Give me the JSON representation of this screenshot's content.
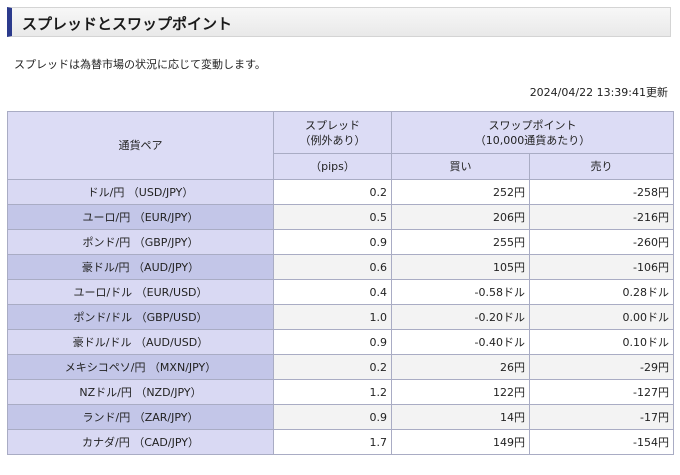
{
  "page": {
    "title": "スプレッドとスワップポイント",
    "note": "スプレッドは為替市場の状況に応じて変動します。",
    "updated": "2024/04/22 13:39:41更新"
  },
  "table": {
    "headers": {
      "pair": "通貨ペア",
      "spread_line1": "スプレッド",
      "spread_line2": "（例外あり）",
      "swap_line1": "スワップポイント",
      "swap_line2": "（10,000通貨あたり）",
      "pips": "（pips）",
      "buy": "買い",
      "sell": "売り"
    },
    "rows": [
      {
        "pair": "ドル/円 （USD/JPY）",
        "spread": "0.2",
        "buy": "252円",
        "sell": "-258円"
      },
      {
        "pair": "ユーロ/円 （EUR/JPY）",
        "spread": "0.5",
        "buy": "206円",
        "sell": "-216円"
      },
      {
        "pair": "ポンド/円 （GBP/JPY）",
        "spread": "0.9",
        "buy": "255円",
        "sell": "-260円"
      },
      {
        "pair": "豪ドル/円 （AUD/JPY）",
        "spread": "0.6",
        "buy": "105円",
        "sell": "-106円"
      },
      {
        "pair": "ユーロ/ドル （EUR/USD）",
        "spread": "0.4",
        "buy": "-0.58ドル",
        "sell": "0.28ドル"
      },
      {
        "pair": "ポンド/ドル （GBP/USD）",
        "spread": "1.0",
        "buy": "-0.20ドル",
        "sell": "0.00ドル"
      },
      {
        "pair": "豪ドル/ドル （AUD/USD）",
        "spread": "0.9",
        "buy": "-0.40ドル",
        "sell": "0.10ドル"
      },
      {
        "pair": "メキシコペソ/円 （MXN/JPY）",
        "spread": "0.2",
        "buy": "26円",
        "sell": "-29円"
      },
      {
        "pair": "NZドル/円 （NZD/JPY）",
        "spread": "1.2",
        "buy": "122円",
        "sell": "-127円"
      },
      {
        "pair": "ランド/円 （ZAR/JPY）",
        "spread": "0.9",
        "buy": "14円",
        "sell": "-17円"
      },
      {
        "pair": "カナダ/円 （CAD/JPY）",
        "spread": "1.7",
        "buy": "149円",
        "sell": "-154円"
      }
    ]
  },
  "colors": {
    "accent": "#2b3a8c",
    "header_bg": "#dcdcf5",
    "pair_cell_dark": "#c3c6e8"
  }
}
